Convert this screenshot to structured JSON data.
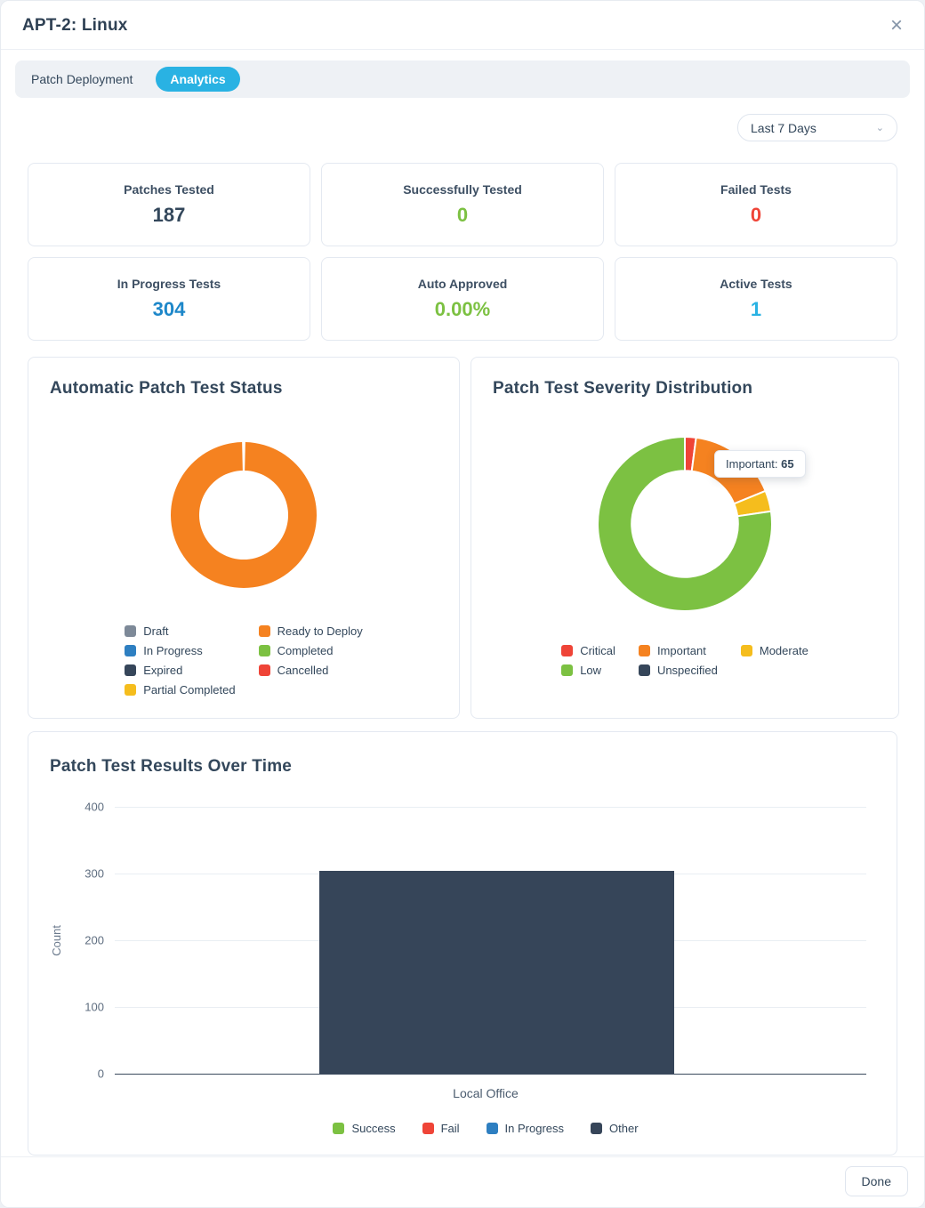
{
  "modal": {
    "title": "APT-2: Linux",
    "close_icon": "×",
    "done_label": "Done"
  },
  "tabs": [
    {
      "label": "Patch Deployment",
      "active": false
    },
    {
      "label": "Analytics",
      "active": true
    }
  ],
  "filter": {
    "selected": "Last 7 Days",
    "chevron": "⌄"
  },
  "stats": [
    {
      "label": "Patches Tested",
      "value": "187",
      "color": "#33475b"
    },
    {
      "label": "Successfully Tested",
      "value": "0",
      "color": "#7cc142"
    },
    {
      "label": "Failed Tests",
      "value": "0",
      "color": "#ef4437"
    },
    {
      "label": "In Progress Tests",
      "value": "304",
      "color": "#1d87c9"
    },
    {
      "label": "Auto Approved",
      "value": "0.00%",
      "color": "#7cc142"
    },
    {
      "label": "Active Tests",
      "value": "1",
      "color": "#29b2e3"
    }
  ],
  "chart_data": [
    {
      "type": "pie",
      "donut": true,
      "title": "Automatic Patch Test Status",
      "segments": [
        {
          "label": "Ready to Deploy",
          "value": 100,
          "color": "#f58220"
        }
      ],
      "note": "donut is entirely Ready to Deploy (values shown as percent share; no numbers visible)",
      "legend_position": "bottom",
      "legend_columns": 2,
      "legend": [
        {
          "label": "Draft",
          "color": "#7d8998"
        },
        {
          "label": "Ready to Deploy",
          "color": "#f58220"
        },
        {
          "label": "In Progress",
          "color": "#2e7fc1"
        },
        {
          "label": "Completed",
          "color": "#7cc142"
        },
        {
          "label": "Expired",
          "color": "#36465a"
        },
        {
          "label": "Cancelled",
          "color": "#ef4437"
        },
        {
          "label": "Partial Completed",
          "color": "#f5bd1d"
        }
      ]
    },
    {
      "type": "pie",
      "donut": true,
      "title": "Patch Test Severity Distribution",
      "segments": [
        {
          "label": "Critical",
          "value": 8,
          "color": "#ef4437"
        },
        {
          "label": "Important",
          "value": 65,
          "color": "#f58220"
        },
        {
          "label": "Moderate",
          "value": 15,
          "color": "#f5bd1d"
        },
        {
          "label": "Low",
          "value": 300,
          "color": "#7cc142"
        },
        {
          "label": "Unspecified",
          "value": 0,
          "color": "#36465a"
        }
      ],
      "note": "Important=65 from tooltip; other segment values estimated from arc angles",
      "tooltip": {
        "label_text": "Important:",
        "value": "65"
      },
      "legend_position": "bottom",
      "legend_columns": 3,
      "legend": [
        {
          "label": "Critical",
          "color": "#ef4437"
        },
        {
          "label": "Important",
          "color": "#f58220"
        },
        {
          "label": "Moderate",
          "color": "#f5bd1d"
        },
        {
          "label": "Low",
          "color": "#7cc142"
        },
        {
          "label": "Unspecified",
          "color": "#36465a"
        }
      ]
    },
    {
      "type": "bar",
      "title": "Patch Test Results Over Time",
      "categories": [
        "Local Office"
      ],
      "series": [
        {
          "name": "Success",
          "value": 0,
          "color": "#7cc142"
        },
        {
          "name": "Fail",
          "value": 0,
          "color": "#ef4437"
        },
        {
          "name": "In Progress",
          "value": 0,
          "color": "#2e7fc1"
        },
        {
          "name": "Other",
          "value": 304,
          "color": "#364559"
        }
      ],
      "xlabel": "Local Office",
      "ylabel": "Count",
      "ylim": [
        0,
        400
      ],
      "yticks": [
        400,
        300,
        200,
        100,
        0
      ],
      "grid": true,
      "legend_position": "bottom"
    }
  ]
}
